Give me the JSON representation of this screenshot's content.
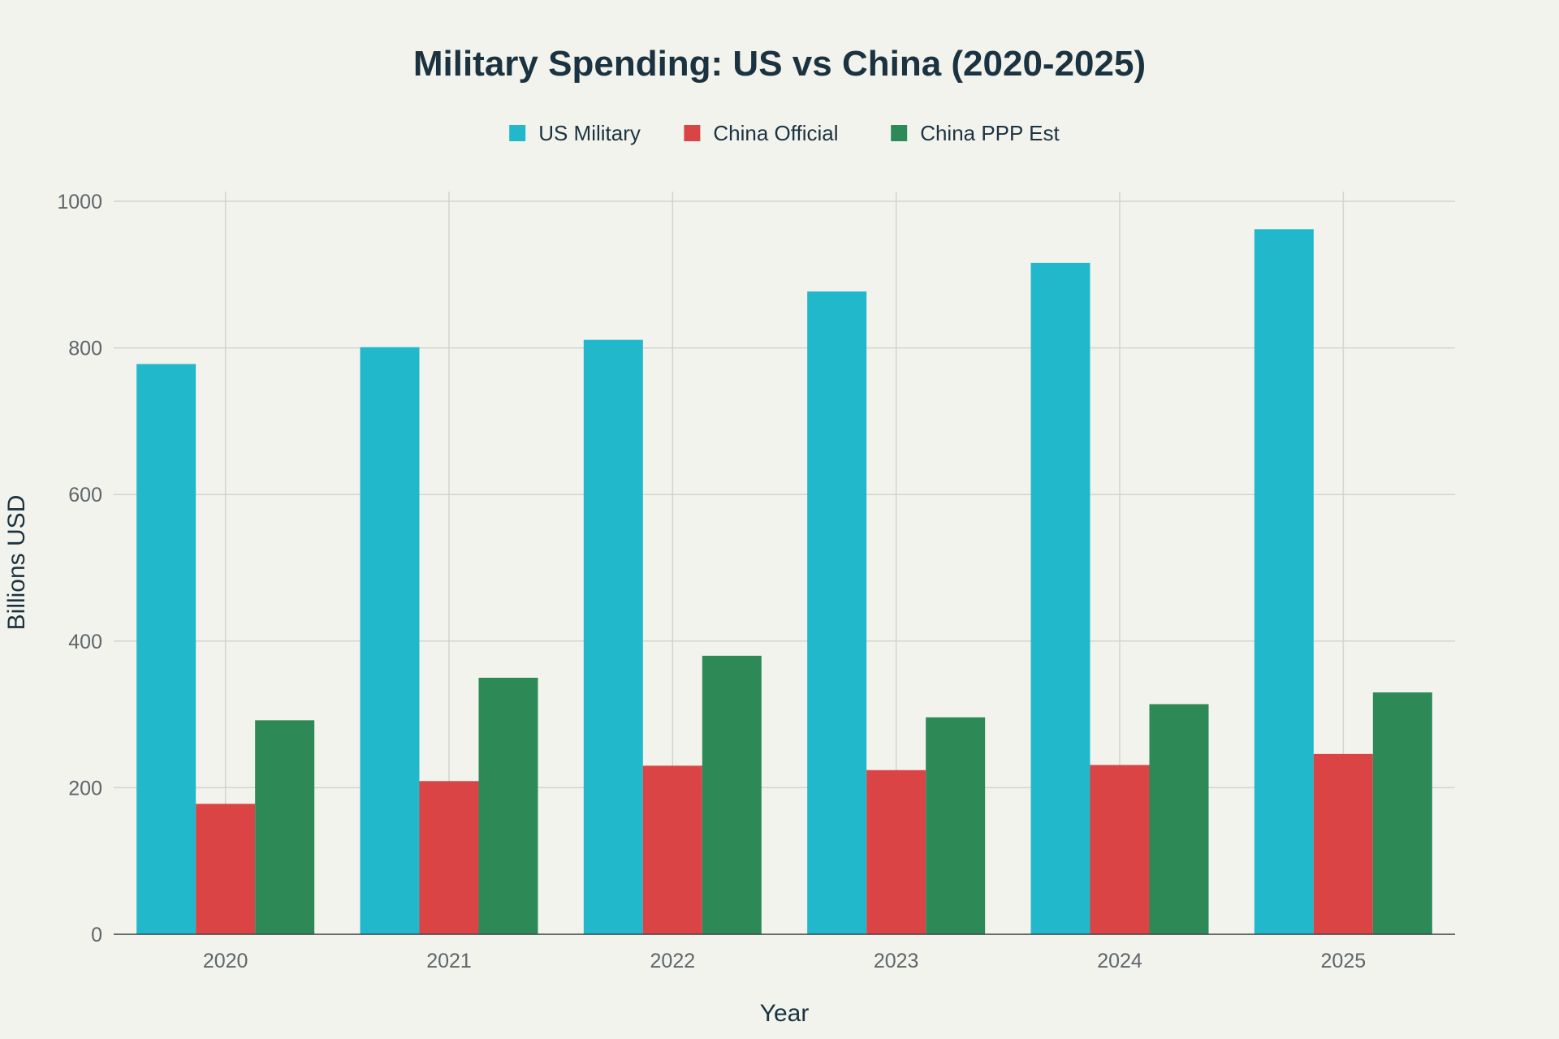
{
  "chart_data": {
    "type": "bar",
    "title": "Military Spending: US vs China (2020-2025)",
    "xlabel": "Year",
    "ylabel": "Billions USD",
    "categories": [
      "2020",
      "2021",
      "2022",
      "2023",
      "2024",
      "2025"
    ],
    "ylim": [
      0,
      1000
    ],
    "yticks": [
      0,
      200,
      400,
      600,
      800,
      1000
    ],
    "grid": true,
    "legend_position": "top-center",
    "series": [
      {
        "name": "US Military",
        "color": "#22b8cc",
        "values": [
          778,
          801,
          811,
          877,
          916,
          962
        ]
      },
      {
        "name": "China Official",
        "color": "#db4444",
        "values": [
          178,
          209,
          230,
          224,
          231,
          246
        ]
      },
      {
        "name": "China PPP Est",
        "color": "#2d8a57",
        "values": [
          292,
          350,
          380,
          296,
          314,
          330
        ]
      }
    ]
  }
}
